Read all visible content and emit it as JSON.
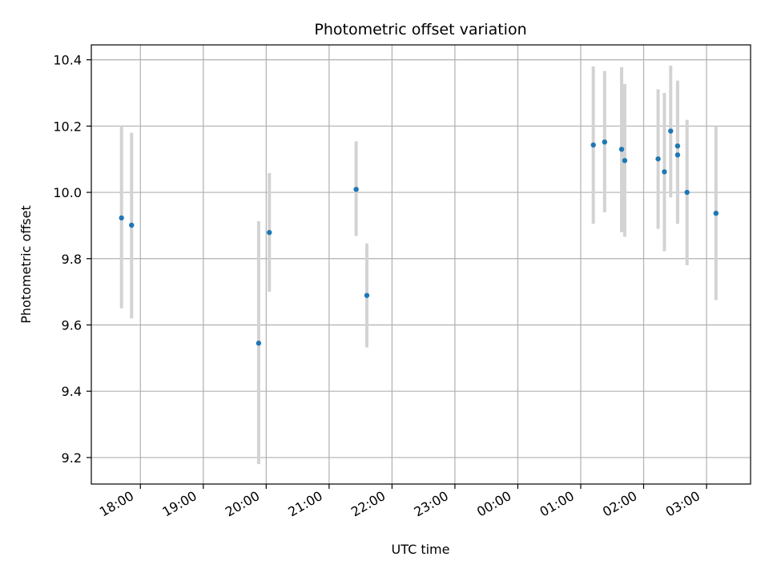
{
  "chart_data": {
    "type": "scatter",
    "title": "Photometric offset variation",
    "xlabel": "UTC time",
    "ylabel": "Photometric offset",
    "x_unit": "hours (UTC, continuing past midnight)",
    "xlim": [
      17.22,
      27.7
    ],
    "ylim": [
      9.12,
      10.445
    ],
    "x_ticks": [
      {
        "value": 18,
        "label": "18:00"
      },
      {
        "value": 19,
        "label": "19:00"
      },
      {
        "value": 20,
        "label": "20:00"
      },
      {
        "value": 21,
        "label": "21:00"
      },
      {
        "value": 22,
        "label": "22:00"
      },
      {
        "value": 23,
        "label": "23:00"
      },
      {
        "value": 24,
        "label": "00:00"
      },
      {
        "value": 25,
        "label": "01:00"
      },
      {
        "value": 26,
        "label": "02:00"
      },
      {
        "value": 27,
        "label": "03:00"
      }
    ],
    "y_ticks": [
      {
        "value": 9.2,
        "label": "9.2"
      },
      {
        "value": 9.4,
        "label": "9.4"
      },
      {
        "value": 9.6,
        "label": "9.6"
      },
      {
        "value": 9.8,
        "label": "9.8"
      },
      {
        "value": 10.0,
        "label": "10.0"
      },
      {
        "value": 10.2,
        "label": "10.2"
      },
      {
        "value": 10.4,
        "label": "10.4"
      }
    ],
    "grid": true,
    "colors": {
      "point": "#1f77b4",
      "errorbar": "#d3d3d3",
      "grid": "#b0b0b0"
    },
    "points": [
      {
        "x": 17.7,
        "y": 9.923,
        "err_low": 9.65,
        "err_high": 10.2
      },
      {
        "x": 17.86,
        "y": 9.901,
        "err_low": 9.62,
        "err_high": 10.18
      },
      {
        "x": 19.88,
        "y": 9.545,
        "err_low": 9.18,
        "err_high": 9.913
      },
      {
        "x": 20.05,
        "y": 9.879,
        "err_low": 9.7,
        "err_high": 10.058
      },
      {
        "x": 21.43,
        "y": 10.009,
        "err_low": 9.868,
        "err_high": 10.154
      },
      {
        "x": 21.6,
        "y": 9.689,
        "err_low": 9.532,
        "err_high": 9.846
      },
      {
        "x": 25.2,
        "y": 10.143,
        "err_low": 9.905,
        "err_high": 10.38
      },
      {
        "x": 25.38,
        "y": 10.152,
        "err_low": 9.94,
        "err_high": 10.366
      },
      {
        "x": 25.65,
        "y": 10.13,
        "err_low": 9.88,
        "err_high": 10.378
      },
      {
        "x": 25.7,
        "y": 10.096,
        "err_low": 9.866,
        "err_high": 10.327
      },
      {
        "x": 26.23,
        "y": 10.101,
        "err_low": 9.89,
        "err_high": 10.311
      },
      {
        "x": 26.33,
        "y": 10.062,
        "err_low": 9.822,
        "err_high": 10.3
      },
      {
        "x": 26.43,
        "y": 10.185,
        "err_low": 9.985,
        "err_high": 10.382
      },
      {
        "x": 26.54,
        "y": 10.14,
        "err_low": 9.93,
        "err_high": 10.337
      },
      {
        "x": 26.54,
        "y": 10.113,
        "err_low": 9.905,
        "err_high": 10.32
      },
      {
        "x": 26.69,
        "y": 10.0,
        "err_low": 9.78,
        "err_high": 10.219
      },
      {
        "x": 27.15,
        "y": 9.937,
        "err_low": 9.675,
        "err_high": 10.2
      }
    ]
  }
}
